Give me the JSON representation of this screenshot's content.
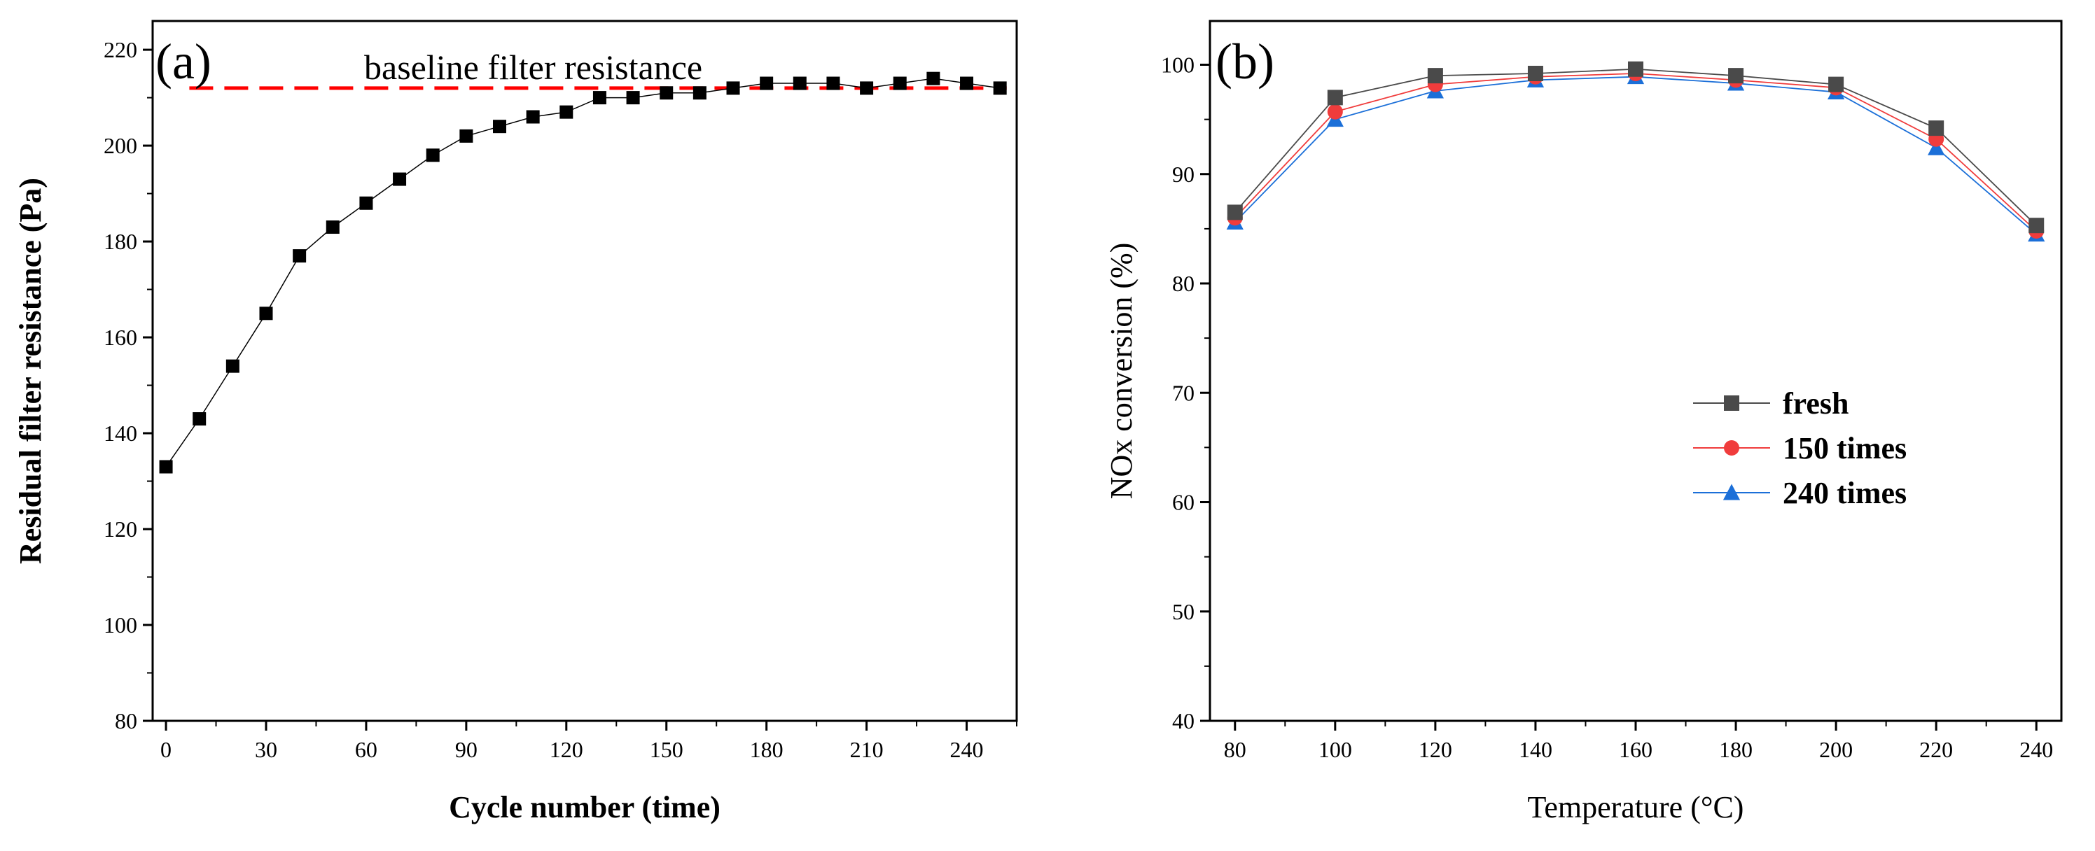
{
  "chart_data": [
    {
      "panel": "(a)",
      "type": "line",
      "xlabel": "Cycle number (time)",
      "ylabel": "Residual filter resistance (Pa)",
      "xlim": [
        -4,
        255
      ],
      "ylim": [
        80,
        226
      ],
      "xticks": [
        0,
        30,
        60,
        90,
        120,
        150,
        180,
        210,
        240
      ],
      "xtick_labels": [
        "0",
        "30",
        "60",
        "90",
        "120",
        "150",
        "180",
        "210",
        "240"
      ],
      "yticks": [
        80,
        100,
        120,
        140,
        160,
        180,
        200,
        220
      ],
      "ytick_labels": [
        "80",
        "100",
        "120",
        "140",
        "160",
        "180",
        "200",
        "220"
      ],
      "annotation": "baseline filter resistance",
      "baseline": {
        "value": 212,
        "x_range": [
          7,
          252
        ],
        "color": "#ff0000",
        "style": "dashed"
      },
      "series": [
        {
          "name": "residual filter resistance",
          "marker": "square",
          "color": "#000000",
          "x": [
            0,
            10,
            20,
            30,
            40,
            50,
            60,
            70,
            80,
            90,
            100,
            110,
            120,
            130,
            140,
            150,
            160,
            170,
            180,
            190,
            200,
            210,
            220,
            230,
            240,
            250
          ],
          "y": [
            133,
            143,
            154,
            165,
            177,
            183,
            188,
            193,
            198,
            202,
            204,
            206,
            207,
            210,
            210,
            211,
            211,
            212,
            213,
            213,
            213,
            212,
            213,
            214,
            213,
            212
          ]
        }
      ]
    },
    {
      "panel": "(b)",
      "type": "line",
      "xlabel": "Temperature (°C)",
      "ylabel": "NOx conversion (%)",
      "xlim": [
        75,
        245
      ],
      "ylim": [
        40,
        104
      ],
      "categories": [
        80,
        100,
        120,
        140,
        160,
        180,
        200,
        220,
        240
      ],
      "xticks": [
        80,
        100,
        120,
        140,
        160,
        180,
        200,
        220,
        240
      ],
      "xtick_labels": [
        "80",
        "100",
        "120",
        "140",
        "160",
        "180",
        "200",
        "220",
        "240"
      ],
      "yticks": [
        40,
        50,
        60,
        70,
        80,
        90,
        100
      ],
      "ytick_labels": [
        "40",
        "50",
        "60",
        "70",
        "80",
        "90",
        "100"
      ],
      "legend_position": "center-right",
      "series": [
        {
          "name": "fresh",
          "marker": "square",
          "color": "#4a4a4a",
          "values": [
            86.5,
            97.0,
            99.0,
            99.2,
            99.6,
            99.0,
            98.2,
            94.2,
            85.3
          ]
        },
        {
          "name": "150 times",
          "marker": "circle",
          "color": "#f03c3c",
          "values": [
            86.0,
            95.7,
            98.2,
            98.9,
            99.2,
            98.6,
            97.9,
            93.2,
            84.8
          ]
        },
        {
          "name": "240 times",
          "marker": "triangle",
          "color": "#1b6fd8",
          "values": [
            85.6,
            95.0,
            97.6,
            98.6,
            98.9,
            98.3,
            97.5,
            92.4,
            84.5
          ]
        }
      ]
    }
  ]
}
